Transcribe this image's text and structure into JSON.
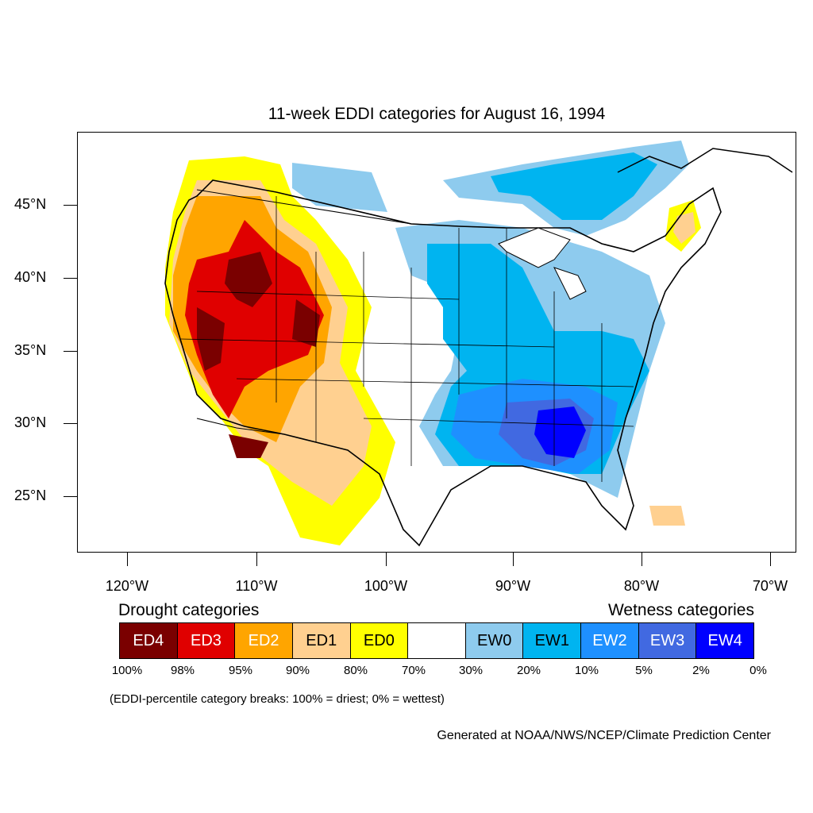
{
  "title": "11-week EDDI categories for August 16, 1994",
  "lat_labels": [
    "45°N",
    "40°N",
    "35°N",
    "30°N",
    "25°N"
  ],
  "lon_labels": [
    "120°W",
    "110°W",
    "100°W",
    "90°W",
    "80°W",
    "70°W"
  ],
  "legend": {
    "drought_heading": "Drought categories",
    "wetness_heading": "Wetness categories",
    "categories": [
      {
        "label": "ED4",
        "color": "#7a0000",
        "text_color": "#ffffff"
      },
      {
        "label": "ED3",
        "color": "#e00000",
        "text_color": "#ffffff"
      },
      {
        "label": "ED2",
        "color": "#ffa500",
        "text_color": "#ffffff"
      },
      {
        "label": "ED1",
        "color": "#ffd090",
        "text_color": "#000000"
      },
      {
        "label": "ED0",
        "color": "#ffff00",
        "text_color": "#000000"
      },
      {
        "label": "",
        "color": "#ffffff",
        "text_color": "#000000"
      },
      {
        "label": "EW0",
        "color": "#8ecbee",
        "text_color": "#000000"
      },
      {
        "label": "EW1",
        "color": "#00b4f0",
        "text_color": "#000000"
      },
      {
        "label": "EW2",
        "color": "#1e90ff",
        "text_color": "#ffffff"
      },
      {
        "label": "EW3",
        "color": "#4169e1",
        "text_color": "#ffffff"
      },
      {
        "label": "EW4",
        "color": "#0000ff",
        "text_color": "#ffffff"
      }
    ],
    "percent_breaks": [
      "100%",
      "98%",
      "95%",
      "90%",
      "80%",
      "70%",
      "30%",
      "20%",
      "10%",
      "5%",
      "2%",
      "0%"
    ]
  },
  "note": "(EDDI-percentile category breaks: 100% = driest; 0% = wettest)",
  "credit": "Generated at NOAA/NWS/NCEP/Climate Prediction Center",
  "map_regions": {
    "west_conus": "drought (ED0–ED4), most intense ED3–ED4 over Great Basin, Utah, Colorado, Arizona",
    "southeast_conus": "wet (EW1–EW4), most intense EW4 over Alabama/Georgia",
    "upper_midwest_canada": "wet (EW0–EW1)",
    "northeast_maine": "ED0–ED1 patch"
  }
}
